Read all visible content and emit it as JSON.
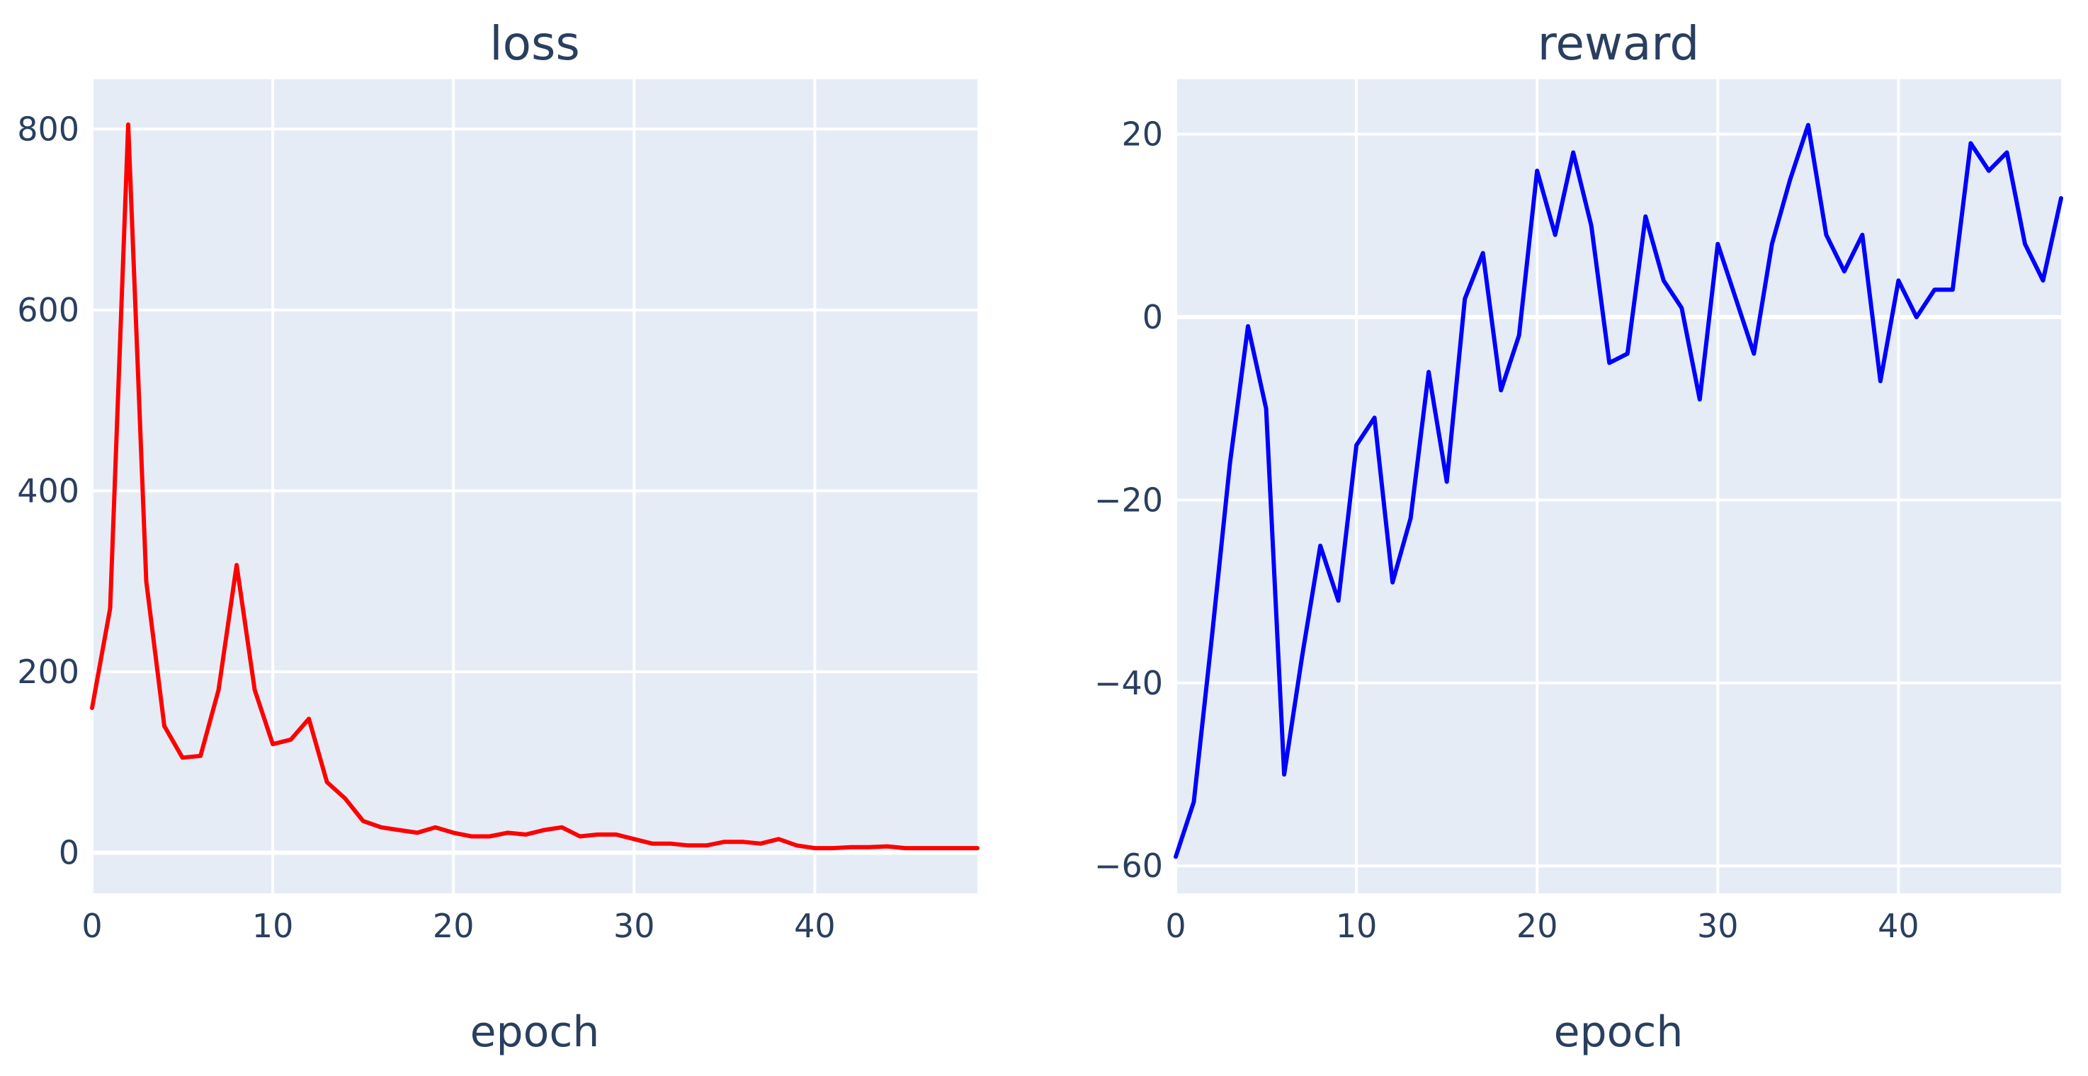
{
  "chart_data": [
    {
      "type": "line",
      "title": "loss",
      "xlabel": "epoch",
      "ylabel": "",
      "xlim": [
        0,
        49
      ],
      "ylim": [
        -45,
        855
      ],
      "xticks": [
        0,
        10,
        20,
        30,
        40
      ],
      "yticks": [
        0,
        200,
        400,
        600,
        800
      ],
      "grid": true,
      "legend": "none",
      "series": [
        {
          "color": "#ff0000",
          "x": [
            0,
            1,
            2,
            3,
            4,
            5,
            6,
            7,
            8,
            9,
            10,
            11,
            12,
            13,
            14,
            15,
            16,
            17,
            18,
            19,
            20,
            21,
            22,
            23,
            24,
            25,
            26,
            27,
            28,
            29,
            30,
            31,
            32,
            33,
            34,
            35,
            36,
            37,
            38,
            39,
            40,
            41,
            42,
            43,
            44,
            45,
            46,
            47,
            48,
            49
          ],
          "y": [
            160,
            270,
            805,
            300,
            140,
            105,
            107,
            180,
            318,
            180,
            120,
            125,
            148,
            78,
            60,
            35,
            28,
            25,
            22,
            28,
            22,
            18,
            18,
            22,
            20,
            25,
            28,
            18,
            20,
            20,
            15,
            10,
            10,
            8,
            8,
            12,
            12,
            10,
            15,
            8,
            5,
            5,
            6,
            6,
            7,
            5,
            5,
            5,
            5,
            5
          ]
        }
      ]
    },
    {
      "type": "line",
      "title": "reward",
      "xlabel": "epoch",
      "ylabel": "",
      "xlim": [
        0,
        49
      ],
      "ylim": [
        -63,
        26
      ],
      "xticks": [
        0,
        10,
        20,
        30,
        40
      ],
      "yticks": [
        -60,
        -40,
        -20,
        0,
        20
      ],
      "grid": true,
      "legend": "none",
      "series": [
        {
          "color": "#0000ff",
          "x": [
            0,
            1,
            2,
            3,
            4,
            5,
            6,
            7,
            8,
            9,
            10,
            11,
            12,
            13,
            14,
            15,
            16,
            17,
            18,
            19,
            20,
            21,
            22,
            23,
            24,
            25,
            26,
            27,
            28,
            29,
            30,
            31,
            32,
            33,
            34,
            35,
            36,
            37,
            38,
            39,
            40,
            41,
            42,
            43,
            44,
            45,
            46,
            47,
            48,
            49
          ],
          "y": [
            -59,
            -53,
            -35,
            -16,
            -1,
            -10,
            -50,
            -37,
            -25,
            -31,
            -14,
            -11,
            -29,
            -22,
            -6,
            -18,
            2,
            7,
            -8,
            -2,
            16,
            9,
            18,
            10,
            -5,
            -4,
            11,
            4,
            1,
            -9,
            8,
            2,
            -4,
            8,
            15,
            21,
            9,
            5,
            9,
            -7,
            4,
            0,
            3,
            3,
            19,
            16,
            18,
            8,
            4,
            13
          ]
        }
      ]
    }
  ]
}
